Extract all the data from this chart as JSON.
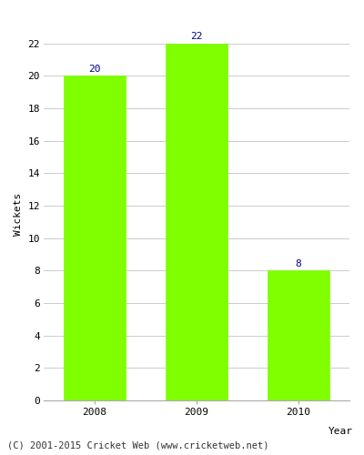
{
  "years": [
    "2008",
    "2009",
    "2010"
  ],
  "values": [
    20,
    22,
    8
  ],
  "bar_color": "#7fff00",
  "bar_edge_color": "#7fff00",
  "xlabel": "Year",
  "ylabel": "Wickets",
  "ylim": [
    0,
    23
  ],
  "yticks": [
    0,
    2,
    4,
    6,
    8,
    10,
    12,
    14,
    16,
    18,
    20,
    22
  ],
  "label_color": "#00008b",
  "label_fontsize": 8,
  "axis_label_fontsize": 8,
  "tick_fontsize": 8,
  "footer_text": "(C) 2001-2015 Cricket Web (www.cricketweb.net)",
  "footer_fontsize": 7.5,
  "grid_color": "#cccccc",
  "bar_width": 0.6
}
